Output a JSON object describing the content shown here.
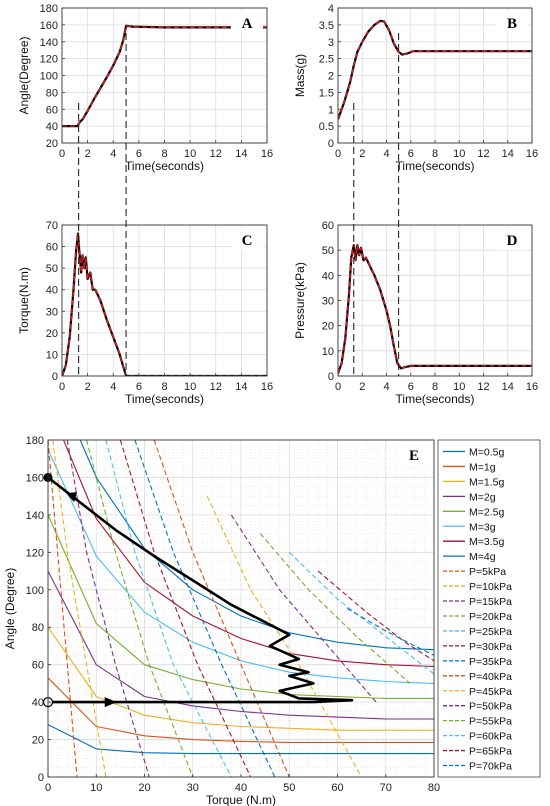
{
  "chart_data": [
    {
      "panel": "A",
      "type": "line",
      "xlabel": "Time(seconds)",
      "ylabel": "Angle(Degree)",
      "xlim": [
        0,
        16
      ],
      "ylim": [
        20,
        180
      ],
      "xticks": [
        0,
        2,
        4,
        6,
        8,
        10,
        12,
        14,
        16
      ],
      "yticks": [
        20,
        40,
        60,
        80,
        100,
        120,
        140,
        160,
        180
      ],
      "grid": true,
      "series": [
        {
          "style": "solid",
          "color": "#000000",
          "x": [
            0,
            1.2,
            1.4,
            1.6,
            2,
            2.5,
            3,
            3.5,
            4,
            4.5,
            4.8,
            5,
            5.5,
            8,
            16
          ],
          "y": [
            40,
            40,
            45,
            48,
            58,
            72,
            85,
            98,
            112,
            128,
            143,
            159,
            158,
            157,
            157
          ]
        },
        {
          "style": "dashed",
          "color": "#e41a1c",
          "x": [
            0,
            1.2,
            1.4,
            1.6,
            2,
            2.5,
            3,
            3.5,
            4,
            4.5,
            4.8,
            5,
            5.5,
            8,
            16
          ],
          "y": [
            40,
            40,
            45,
            48,
            58,
            72,
            85,
            98,
            112,
            128,
            143,
            159,
            158,
            157,
            157
          ]
        }
      ],
      "vlines": [
        1.3,
        5
      ]
    },
    {
      "panel": "B",
      "type": "line",
      "xlabel": "Time(seconds)",
      "ylabel": "Mass(g)",
      "xlim": [
        0,
        16
      ],
      "ylim": [
        0,
        4
      ],
      "xticks": [
        0,
        2,
        4,
        6,
        8,
        10,
        12,
        14,
        16
      ],
      "yticks": [
        0,
        0.5,
        1,
        1.5,
        2,
        2.5,
        3,
        3.5,
        4
      ],
      "grid": true,
      "series": [
        {
          "style": "solid",
          "color": "#000000",
          "x": [
            0,
            0.5,
            1,
            1.3,
            1.6,
            2,
            2.5,
            3,
            3.5,
            3.8,
            4.2,
            4.6,
            5,
            5.3,
            5.7,
            6.2,
            8,
            16
          ],
          "y": [
            0.7,
            1.2,
            1.8,
            2.3,
            2.7,
            3.0,
            3.3,
            3.5,
            3.62,
            3.6,
            3.35,
            2.95,
            2.7,
            2.62,
            2.65,
            2.72,
            2.72,
            2.72
          ]
        },
        {
          "style": "dashed",
          "color": "#e41a1c",
          "x": [
            0,
            0.5,
            1,
            1.3,
            1.6,
            2,
            2.5,
            3,
            3.5,
            3.8,
            4.2,
            4.6,
            5,
            5.3,
            5.7,
            6.2,
            8,
            16
          ],
          "y": [
            0.7,
            1.2,
            1.8,
            2.3,
            2.7,
            3.0,
            3.3,
            3.5,
            3.62,
            3.6,
            3.35,
            2.95,
            2.7,
            2.62,
            2.65,
            2.72,
            2.72,
            2.72
          ]
        }
      ],
      "vlines": [
        1.3,
        5
      ]
    },
    {
      "panel": "C",
      "type": "line",
      "xlabel": "Time(seconds)",
      "ylabel": "Torque(N.m)",
      "xlim": [
        0,
        16
      ],
      "ylim": [
        0,
        70
      ],
      "xticks": [
        0,
        2,
        4,
        6,
        8,
        10,
        12,
        14,
        16
      ],
      "yticks": [
        0,
        10,
        20,
        30,
        40,
        50,
        60,
        70
      ],
      "grid": true,
      "series": [
        {
          "style": "solid",
          "color": "#000000",
          "x": [
            0,
            0.3,
            0.6,
            0.9,
            1.1,
            1.25,
            1.35,
            1.5,
            1.6,
            1.75,
            1.85,
            2,
            2.2,
            2.4,
            2.6,
            3,
            3.5,
            4,
            4.5,
            4.8,
            5,
            5.5,
            16
          ],
          "y": [
            0,
            5,
            18,
            40,
            58,
            66,
            58,
            48,
            56,
            50,
            55,
            45,
            48,
            40,
            40,
            35,
            26,
            18,
            10,
            4,
            0,
            0,
            0
          ]
        },
        {
          "style": "dashed",
          "color": "#e41a1c",
          "x": [
            0,
            0.3,
            0.6,
            0.9,
            1.1,
            1.25,
            1.35,
            1.5,
            1.6,
            1.75,
            1.85,
            2,
            2.2,
            2.4,
            2.6,
            3,
            3.5,
            4,
            4.5,
            4.8,
            5,
            5.5,
            16
          ],
          "y": [
            0,
            5,
            18,
            40,
            58,
            66,
            58,
            48,
            56,
            50,
            55,
            45,
            48,
            40,
            40,
            35,
            26,
            18,
            10,
            4,
            0,
            0,
            0
          ]
        }
      ],
      "vlines": [
        1.3,
        5
      ]
    },
    {
      "panel": "D",
      "type": "line",
      "xlabel": "Time(seconds)",
      "ylabel": "Pressure(kPa)",
      "xlim": [
        0,
        16
      ],
      "ylim": [
        0,
        60
      ],
      "xticks": [
        0,
        2,
        4,
        6,
        8,
        10,
        12,
        14,
        16
      ],
      "yticks": [
        0,
        10,
        20,
        30,
        40,
        50,
        60
      ],
      "grid": true,
      "series": [
        {
          "style": "solid",
          "color": "#000000",
          "x": [
            0,
            0.3,
            0.6,
            0.9,
            1.1,
            1.3,
            1.45,
            1.6,
            1.75,
            1.9,
            2.1,
            2.3,
            2.6,
            3,
            3.5,
            4,
            4.3,
            4.6,
            4.9,
            5.2,
            5.5,
            6,
            8,
            16
          ],
          "y": [
            1,
            5,
            15,
            32,
            47,
            52,
            46,
            52,
            48,
            51,
            46,
            47,
            44,
            40,
            34,
            26,
            20,
            12,
            5,
            3,
            3.5,
            4,
            4,
            4
          ]
        },
        {
          "style": "dashed",
          "color": "#e41a1c",
          "x": [
            0,
            0.3,
            0.6,
            0.9,
            1.1,
            1.3,
            1.45,
            1.6,
            1.75,
            1.9,
            2.1,
            2.3,
            2.6,
            3,
            3.5,
            4,
            4.3,
            4.6,
            4.9,
            5.2,
            5.5,
            6,
            8,
            16
          ],
          "y": [
            1,
            5,
            15,
            32,
            47,
            52,
            46,
            52,
            48,
            51,
            46,
            47,
            44,
            40,
            34,
            26,
            20,
            12,
            5,
            3,
            3.5,
            4,
            4,
            4
          ]
        }
      ],
      "vlines": [
        1.3,
        5
      ]
    },
    {
      "panel": "E",
      "type": "line",
      "xlabel": "Torque (N.m)",
      "ylabel": "Angle (Degree)",
      "xlim": [
        0,
        80
      ],
      "ylim": [
        0,
        180
      ],
      "xticks": [
        0,
        10,
        20,
        30,
        40,
        50,
        60,
        70,
        80
      ],
      "yticks": [
        0,
        20,
        40,
        60,
        80,
        100,
        120,
        140,
        160,
        180
      ],
      "grid": true,
      "mass_lines": [
        {
          "name": "M=0.5g",
          "color": "#0072BD",
          "values": [
            28,
            15,
            13,
            12.5,
            12.5,
            12.5,
            12.5,
            12.5,
            12.5
          ]
        },
        {
          "name": "M=1g",
          "color": "#D95319",
          "values": [
            53,
            27,
            22,
            20,
            19,
            18.5,
            18.5,
            18.5,
            18.5
          ]
        },
        {
          "name": "M=1.5g",
          "color": "#EDB120",
          "values": [
            80,
            43,
            33,
            29,
            27,
            26,
            25,
            25,
            25
          ]
        },
        {
          "name": "M=2g",
          "color": "#7E2F8E",
          "values": [
            110,
            60,
            43,
            38,
            35,
            33,
            32,
            31,
            31
          ]
        },
        {
          "name": "M=2.5g",
          "color": "#77AC30",
          "values": [
            140,
            82,
            60,
            52,
            47,
            44,
            43,
            42,
            42
          ]
        },
        {
          "name": "M=3g",
          "color": "#4DBEEE",
          "values": [
            175,
            118,
            88,
            72,
            62,
            56,
            53,
            51,
            50
          ]
        },
        {
          "name": "M=3.5g",
          "color": "#A2142F",
          "values": [
            200,
            138,
            104,
            86,
            74,
            66,
            62,
            60,
            59
          ]
        },
        {
          "name": "M=4g",
          "color": "#0072BD",
          "values": [
            220,
            160,
            122,
            100,
            86,
            77,
            72,
            69,
            68
          ]
        }
      ],
      "pressure_lines": [
        {
          "name": "P=5kPa",
          "color": "#D95319",
          "x": [
            0,
            2,
            4,
            6
          ],
          "y": [
            180,
            120,
            60,
            0
          ]
        },
        {
          "name": "P=10kPa",
          "color": "#EDB120",
          "x": [
            1,
            4,
            8,
            12
          ],
          "y": [
            180,
            120,
            60,
            0
          ]
        },
        {
          "name": "P=15kPa",
          "color": "#7E2F8E",
          "x": [
            4,
            8,
            14,
            21
          ],
          "y": [
            180,
            120,
            60,
            0
          ]
        },
        {
          "name": "P=20kPa",
          "color": "#77AC30",
          "x": [
            8,
            14,
            21,
            30
          ],
          "y": [
            180,
            120,
            60,
            0
          ]
        },
        {
          "name": "P=25kPa",
          "color": "#4DBEEE",
          "x": [
            12,
            18,
            26,
            38
          ],
          "y": [
            180,
            120,
            60,
            0
          ]
        },
        {
          "name": "P=30kPa",
          "color": "#A2142F",
          "x": [
            15,
            22,
            31,
            42
          ],
          "y": [
            180,
            120,
            60,
            0
          ]
        },
        {
          "name": "P=35kPa",
          "color": "#0072BD",
          "x": [
            18,
            26,
            36,
            47
          ],
          "y": [
            180,
            120,
            60,
            0
          ]
        },
        {
          "name": "P=40kPa",
          "color": "#D95319",
          "x": [
            22,
            30,
            40,
            50
          ],
          "y": [
            180,
            120,
            60,
            0
          ]
        },
        {
          "name": "P=45kPa",
          "color": "#EDB120",
          "x": [
            33,
            42,
            52,
            65
          ],
          "y": [
            150,
            100,
            60,
            0
          ]
        },
        {
          "name": "P=50kPa",
          "color": "#7E2F8E",
          "x": [
            38,
            48,
            58,
            68
          ],
          "y": [
            140,
            100,
            70,
            40
          ]
        },
        {
          "name": "P=55kPa",
          "color": "#77AC30",
          "x": [
            44,
            54,
            64,
            75
          ],
          "y": [
            130,
            100,
            75,
            50
          ]
        },
        {
          "name": "P=60kPa",
          "color": "#4DBEEE",
          "x": [
            50,
            60,
            70,
            80
          ],
          "y": [
            120,
            95,
            75,
            55
          ]
        },
        {
          "name": "P=65kPa",
          "color": "#A2142F",
          "x": [
            56,
            66,
            74,
            80
          ],
          "y": [
            110,
            88,
            72,
            62
          ]
        },
        {
          "name": "P=70kPa",
          "color": "#0072BD",
          "x": [
            62,
            70,
            76,
            80
          ],
          "y": [
            90,
            78,
            70,
            65
          ]
        }
      ],
      "trajectory": {
        "x": [
          0,
          12,
          25,
          40,
          55,
          63,
          52,
          48,
          55,
          50,
          54,
          48,
          52,
          46,
          50,
          44,
          38,
          30,
          22,
          14,
          5,
          0
        ],
        "y": [
          40,
          40,
          40,
          40,
          40,
          41,
          42,
          46,
          50,
          54,
          56,
          60,
          63,
          70,
          76,
          84,
          92,
          105,
          118,
          132,
          150,
          160
        ]
      },
      "start_point": [
        0,
        40
      ],
      "end_point": [
        0,
        160
      ]
    }
  ]
}
